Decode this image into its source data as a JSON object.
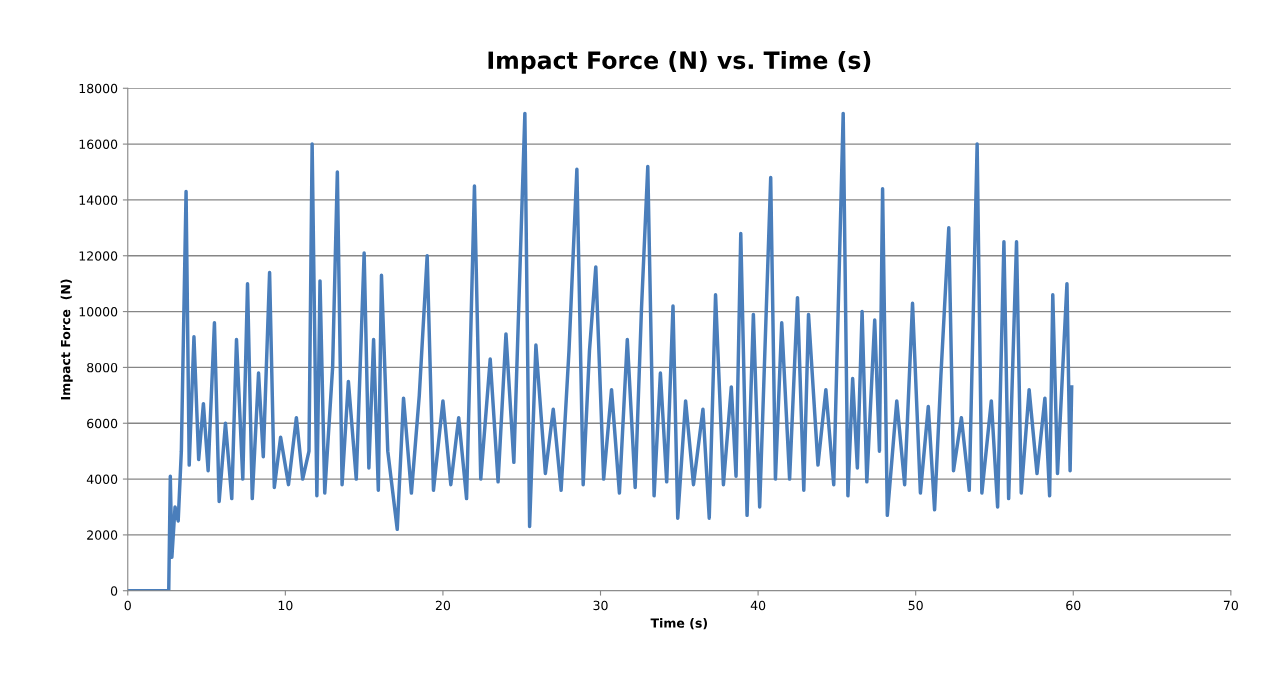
{
  "chart_data": {
    "type": "line",
    "title": "Impact Force (N) vs. Time (s)",
    "xlabel": "Time (s)",
    "ylabel": "Impact Force  (N)",
    "xlim": [
      0,
      70
    ],
    "xticks": [
      0,
      10,
      20,
      30,
      40,
      50,
      60,
      70
    ],
    "ylim": [
      0,
      18000
    ],
    "yticks": [
      0,
      2000,
      4000,
      6000,
      8000,
      10000,
      12000,
      14000,
      16000,
      18000
    ],
    "grid": "y",
    "marker": "none",
    "line_style": "solid",
    "series": [
      {
        "color": "#4a7ebb",
        "x": [
          0,
          2.6,
          2.7,
          2.8,
          3.0,
          3.2,
          3.4,
          3.7,
          3.9,
          4.2,
          4.5,
          4.8,
          5.1,
          5.5,
          5.8,
          6.2,
          6.6,
          6.9,
          7.3,
          7.6,
          7.9,
          8.3,
          8.6,
          9.0,
          9.3,
          9.7,
          10.2,
          10.7,
          11.1,
          11.5,
          11.7,
          12.0,
          12.2,
          12.5,
          13.0,
          13.3,
          13.6,
          14.0,
          14.5,
          15.0,
          15.3,
          15.6,
          15.9,
          16.1,
          16.5,
          17.1,
          17.5,
          18.0,
          18.5,
          19.0,
          19.4,
          20.0,
          20.5,
          21.0,
          21.5,
          22.0,
          22.4,
          23.0,
          23.5,
          24.0,
          24.5,
          25.2,
          25.5,
          25.9,
          26.5,
          27.0,
          27.5,
          28.0,
          28.5,
          28.9,
          29.3,
          29.7,
          30.2,
          30.7,
          31.2,
          31.7,
          32.2,
          32.6,
          33.0,
          33.4,
          33.8,
          34.2,
          34.6,
          34.9,
          35.4,
          35.9,
          36.5,
          36.9,
          37.3,
          37.8,
          38.3,
          38.6,
          38.9,
          39.3,
          39.7,
          40.1,
          40.8,
          41.1,
          41.5,
          42.0,
          42.5,
          42.9,
          43.2,
          43.8,
          44.3,
          44.8,
          45.4,
          45.7,
          46.0,
          46.3,
          46.6,
          46.9,
          47.4,
          47.7,
          47.9,
          48.2,
          48.8,
          49.3,
          49.8,
          50.3,
          50.8,
          51.2,
          51.6,
          52.1,
          52.4,
          52.9,
          53.4,
          53.9,
          54.2,
          54.8,
          55.2,
          55.6,
          55.9,
          56.4,
          56.7,
          57.2,
          57.7,
          58.2,
          58.5,
          58.7,
          59.0,
          59.3,
          59.6,
          59.8,
          59.9
        ],
        "values": [
          0,
          0,
          4100,
          1200,
          3000,
          2500,
          5000,
          14300,
          4500,
          9100,
          4700,
          6700,
          4300,
          9600,
          3200,
          6000,
          3300,
          9000,
          4000,
          11000,
          3300,
          7800,
          4800,
          11400,
          3700,
          5500,
          3800,
          6200,
          4000,
          5000,
          16000,
          3400,
          11100,
          3500,
          8000,
          15000,
          3800,
          7500,
          4000,
          12100,
          4400,
          9000,
          3600,
          11300,
          5000,
          2200,
          6900,
          3500,
          7000,
          12000,
          3600,
          6800,
          3800,
          6200,
          3300,
          14500,
          4000,
          8300,
          3900,
          9200,
          4600,
          17100,
          2300,
          8800,
          4200,
          6500,
          3600,
          8600,
          15100,
          3800,
          8600,
          11600,
          4000,
          7200,
          3500,
          9000,
          3700,
          10100,
          15200,
          3400,
          7800,
          3900,
          10200,
          2600,
          6800,
          3800,
          6500,
          2600,
          10600,
          3800,
          7300,
          4100,
          12800,
          2700,
          9900,
          3000,
          14800,
          4000,
          9600,
          4000,
          10500,
          3600,
          9900,
          4500,
          7200,
          3800,
          17100,
          3400,
          7600,
          4400,
          10000,
          3900,
          9700,
          5000,
          14400,
          2700,
          6800,
          3800,
          10300,
          3500,
          6600,
          2900,
          7700,
          13000,
          4300,
          6200,
          3600,
          16000,
          3500,
          6800,
          3000,
          12500,
          3300,
          12500,
          3500,
          7200,
          4200,
          6900,
          3400,
          10600,
          4200,
          7600,
          11000,
          4300,
          7300
        ]
      }
    ]
  }
}
